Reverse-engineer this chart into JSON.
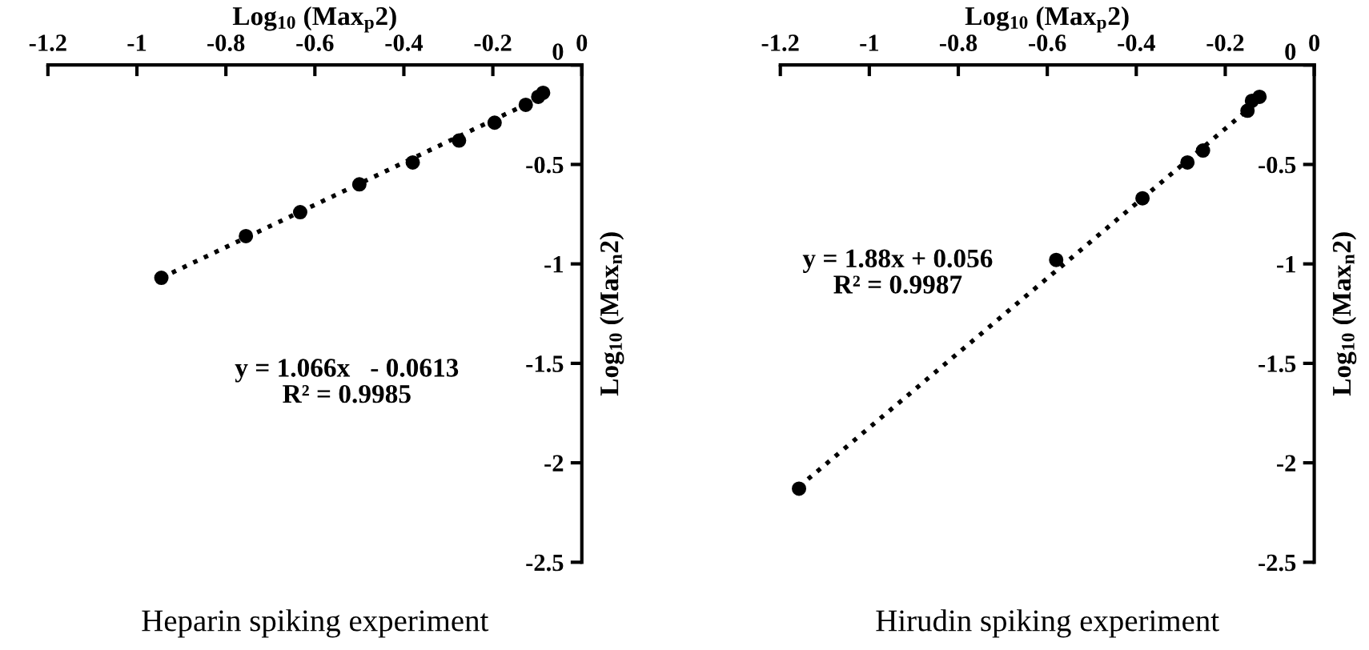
{
  "chart_data": [
    {
      "type": "scatter",
      "title": "Heparin spiking experiment",
      "xlabel": "Log$_{10}$ (Max$_{p}$2)",
      "ylabel": "Log$_{10}$ (Max$_{n}$2)",
      "xlim": [
        -1.2,
        0
      ],
      "ylim": [
        -2.5,
        0
      ],
      "xticks": [
        -1.2,
        -1,
        -0.8,
        -0.6,
        -0.4,
        -0.2,
        0
      ],
      "yticks": [
        -2.5,
        -2,
        -1.5,
        -1,
        -0.5,
        0
      ],
      "grid": false,
      "legend": false,
      "marker": "circle",
      "annotations": [
        "y = 1.066x   - 0.0613\nR² = 0.9985"
      ],
      "series": [
        {
          "color": "#000000",
          "x": [
            -0.945,
            -0.755,
            -0.633,
            -0.5,
            -0.38,
            -0.276,
            -0.196,
            -0.126,
            -0.098,
            -0.087
          ],
          "values": [
            -1.07,
            -0.86,
            -0.74,
            -0.6,
            -0.49,
            -0.38,
            -0.29,
            -0.2,
            -0.16,
            -0.14
          ]
        },
        {
          "type": "line",
          "color": "#000000",
          "line_style": "dotted",
          "marker": "none",
          "x": [
            -0.945,
            -0.08
          ],
          "values": [
            -1.07,
            -0.15
          ]
        }
      ]
    },
    {
      "type": "scatter",
      "title": "Hirudin spiking experiment",
      "xlabel": "Log$_{10}$ (Max$_{p}$2)",
      "ylabel": "Log$_{10}$ (Max$_{n}$2)",
      "xlim": [
        -1.2,
        0
      ],
      "ylim": [
        -2.5,
        0
      ],
      "xticks": [
        -1.2,
        -1,
        -0.8,
        -0.6,
        -0.4,
        -0.2,
        0
      ],
      "yticks": [
        -2.5,
        -2,
        -1.5,
        -1,
        -0.5,
        0
      ],
      "grid": false,
      "legend": false,
      "marker": "circle",
      "annotations": [
        "y = 1.88x + 0.056\nR² = 0.9987"
      ],
      "series": [
        {
          "color": "#000000",
          "x": [
            -1.158,
            -0.58,
            -0.386,
            -0.285,
            -0.25,
            -0.15,
            -0.14,
            -0.123
          ],
          "values": [
            -2.13,
            -0.98,
            -0.67,
            -0.49,
            -0.43,
            -0.23,
            -0.18,
            -0.16
          ]
        },
        {
          "type": "line",
          "color": "#000000",
          "line_style": "dotted",
          "marker": "none",
          "x": [
            -1.158,
            -0.12
          ],
          "values": [
            -2.12,
            -0.17
          ]
        }
      ]
    }
  ]
}
